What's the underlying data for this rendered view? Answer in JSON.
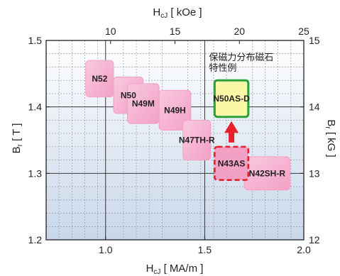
{
  "chart_data": {
    "type": "scatter",
    "title": "",
    "top_axis": {
      "label_prefix": "H",
      "label_sub": "cJ",
      "label_suffix": " [ kOe ]",
      "range": [
        5,
        25
      ],
      "ticks": [
        "10",
        "15",
        "20",
        "25"
      ],
      "tick_values": [
        10,
        15,
        20,
        25
      ]
    },
    "bottom_axis": {
      "label_prefix": "H",
      "label_sub": "cJ",
      "label_suffix": " [ MA/m ]",
      "range": [
        0.7,
        2.0
      ],
      "ticks": [
        "1.0",
        "1.5",
        "2.0"
      ],
      "tick_values": [
        1.0,
        1.5,
        2.0
      ]
    },
    "left_axis": {
      "label_prefix": "B",
      "label_sub": "r",
      "label_suffix": " [ T ]",
      "range": [
        1.2,
        1.5
      ],
      "ticks": [
        "1.2",
        "1.3",
        "1.4",
        "1.5"
      ],
      "tick_values": [
        1.2,
        1.3,
        1.4,
        1.5
      ]
    },
    "right_axis": {
      "label_prefix": "B",
      "label_sub": "r",
      "label_suffix": " [ kG ]",
      "range": [
        12,
        15
      ],
      "ticks": [
        "12",
        "13",
        "14",
        "15"
      ],
      "tick_values": [
        12,
        13,
        14,
        15
      ]
    },
    "grid": true,
    "grades": [
      {
        "name": "N52",
        "hcj_min": 0.9,
        "hcj_max": 1.04,
        "br_min": 1.415,
        "br_max": 1.47
      },
      {
        "name": "N50",
        "hcj_min": 1.04,
        "hcj_max": 1.19,
        "br_min": 1.39,
        "br_max": 1.445
      },
      {
        "name": "N49M",
        "hcj_min": 1.11,
        "hcj_max": 1.27,
        "br_min": 1.375,
        "br_max": 1.435
      },
      {
        "name": "N49H",
        "hcj_min": 1.27,
        "hcj_max": 1.43,
        "br_min": 1.365,
        "br_max": 1.425
      },
      {
        "name": "N47TH-R",
        "hcj_min": 1.39,
        "hcj_max": 1.53,
        "br_min": 1.32,
        "br_max": 1.38
      },
      {
        "name": "N42SH-R",
        "hcj_min": 1.7,
        "hcj_max": 1.93,
        "br_min": 1.275,
        "br_max": 1.325
      }
    ],
    "annotation": {
      "text_line1": "保磁力分布磁石",
      "text_line2": "特性例",
      "improved": {
        "name": "N50AS-D",
        "hcj_min": 1.55,
        "hcj_max": 1.72,
        "br_min": 1.385,
        "br_max": 1.44
      },
      "base": {
        "name": "N43AS",
        "hcj_min": 1.55,
        "hcj_max": 1.72,
        "br_min": 1.29,
        "br_max": 1.34
      }
    },
    "colors": {
      "plot_bg_top": "#ffffff",
      "plot_bg_bottom": "#c9d7ea",
      "grid_major": "#231f20",
      "grid_minor": "#8a8f99",
      "box_fill": "#f2a0c4",
      "box_fill_light": "#f9cadf",
      "improved_fill": "#fbf7a6",
      "improved_border": "#2ea03a",
      "base_border": "#e8202a",
      "arrow": "#e8202a"
    }
  }
}
